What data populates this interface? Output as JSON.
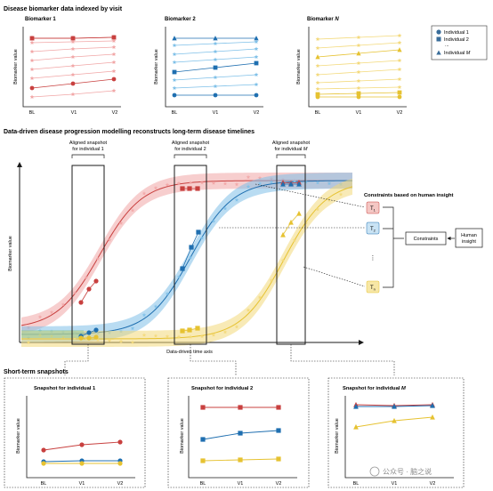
{
  "sections": {
    "top_title": "Disease biomarker data indexed by visit",
    "middle_title": "Data-driven disease progression modelling reconstructs long-term disease timelines",
    "bottom_title": "Short-term snapshots"
  },
  "top_panels": [
    {
      "title": "Biomarker 1"
    },
    {
      "title": "Biomarker 2"
    },
    {
      "title_main": "Biomarker ",
      "title_italic": "N"
    }
  ],
  "axis": {
    "biomarker_value": "Biomarker value",
    "visits": [
      "BL",
      "V1",
      "V2"
    ],
    "time_axis": "Data-driven time axis"
  },
  "legend": {
    "items": [
      "Individual 1",
      "Individual 2",
      "...",
      "Individual "
    ],
    "last_italic": "M"
  },
  "middle": {
    "aligned": [
      {
        "line1": "Aligned snapshot",
        "line2": "for individual 1"
      },
      {
        "line1": "Aligned snapshot",
        "line2": "for individual 2"
      },
      {
        "line1": "Aligned snapshot",
        "line2": "for individual ",
        "italic": "M"
      }
    ],
    "constraints_title": "Constraints based on human insight",
    "tau_boxes": [
      "T",
      "T",
      "T"
    ],
    "tau_subs": [
      "1",
      "2",
      "n"
    ],
    "vdots": "⋮",
    "constraints_box": "Constraints",
    "human_insight": [
      "Human",
      "insight"
    ]
  },
  "snapshots": [
    {
      "title": "Snapshot for individual 1"
    },
    {
      "title": "Snapshot for individual 2"
    },
    {
      "title_main": "Snapshot for individual ",
      "title_italic": "M"
    }
  ],
  "watermark": "公众号 · 脑之说",
  "colors": {
    "red": "#c8403f",
    "red_light": "#f1a6a6",
    "blue": "#1f6fb0",
    "blue_light": "#7fc0e8",
    "yellow": "#e6c231",
    "yellow_light": "#f3d97a",
    "green": "#8fc79b"
  }
}
